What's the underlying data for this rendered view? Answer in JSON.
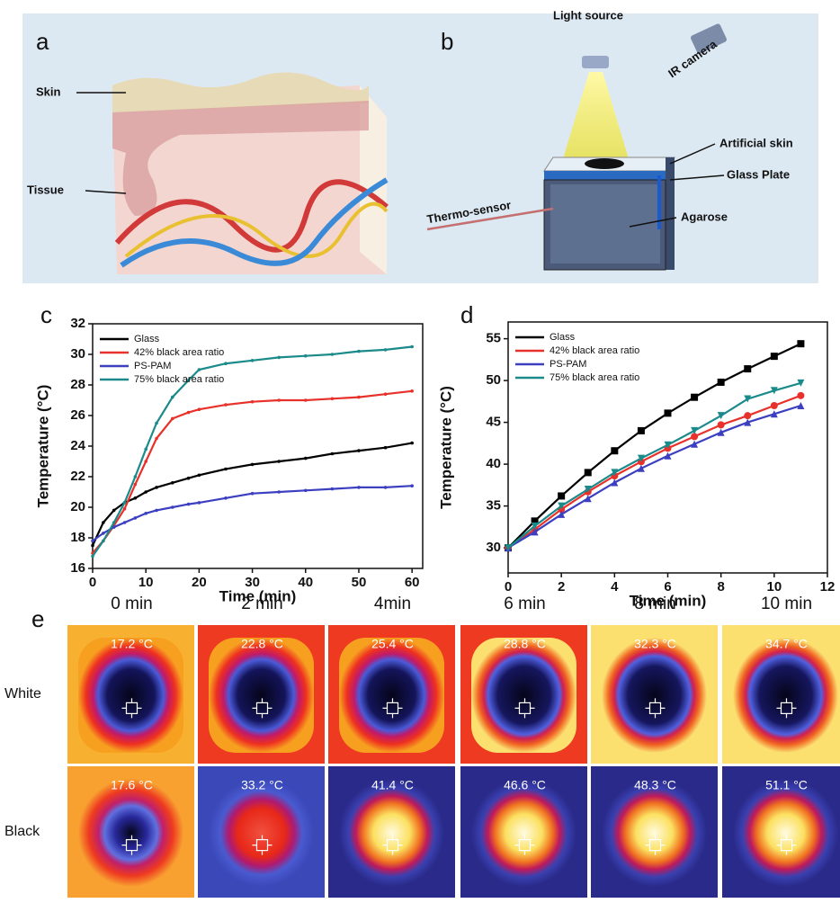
{
  "panel_a": {
    "label": "a",
    "parts": [
      "Skin",
      "Tissue"
    ]
  },
  "panel_b": {
    "label": "b",
    "parts": [
      "Light source",
      "IR camera",
      "Artificial skin",
      "Glass Plate",
      "Agarose",
      "Thermo-sensor"
    ]
  },
  "chart_data": [
    {
      "type": "line",
      "panel_label": "c",
      "x_label": "Time (min)",
      "y_label": "Temperature (°C)",
      "x": [
        0,
        2,
        4,
        6,
        8,
        10,
        12,
        15,
        18,
        20,
        25,
        30,
        35,
        40,
        45,
        50,
        55,
        60
      ],
      "xlim": [
        0,
        62
      ],
      "xticks": [
        0,
        10,
        20,
        30,
        40,
        50,
        60
      ],
      "ylim": [
        16,
        32
      ],
      "yticks": [
        16,
        18,
        20,
        22,
        24,
        26,
        28,
        30,
        32
      ],
      "markers": false,
      "legend": "top-left",
      "series": [
        {
          "name": "Glass",
          "color": "#000000",
          "values": [
            17.5,
            19.0,
            19.8,
            20.3,
            20.6,
            21.0,
            21.3,
            21.6,
            21.9,
            22.1,
            22.5,
            22.8,
            23.0,
            23.2,
            23.5,
            23.7,
            23.9,
            24.2
          ]
        },
        {
          "name": "42% black area ratio",
          "color": "#e8312a",
          "values": [
            17.0,
            17.8,
            18.8,
            19.9,
            21.5,
            23.0,
            24.5,
            25.8,
            26.2,
            26.4,
            26.7,
            26.9,
            27.0,
            27.0,
            27.1,
            27.2,
            27.4,
            27.6
          ]
        },
        {
          "name": "PS-PAM",
          "color": "#3b3fc0",
          "values": [
            17.8,
            18.3,
            18.7,
            19.0,
            19.3,
            19.6,
            19.8,
            20.0,
            20.2,
            20.3,
            20.6,
            20.9,
            21.0,
            21.1,
            21.2,
            21.3,
            21.3,
            21.4
          ]
        },
        {
          "name": "75% black area ratio",
          "color": "#1a8a8a",
          "values": [
            16.8,
            17.8,
            19.0,
            20.3,
            22.0,
            23.8,
            25.5,
            27.2,
            28.3,
            29.0,
            29.4,
            29.6,
            29.8,
            29.9,
            30.0,
            30.2,
            30.3,
            30.5
          ]
        }
      ]
    },
    {
      "type": "line",
      "panel_label": "d",
      "x_label": "Time (min)",
      "y_label": "Temperature (°C)",
      "x": [
        0,
        1,
        2,
        3,
        4,
        5,
        6,
        7,
        8,
        9,
        10,
        11
      ],
      "xlim": [
        0,
        12
      ],
      "xticks": [
        0,
        2,
        4,
        6,
        8,
        10,
        12
      ],
      "ylim": [
        27,
        57
      ],
      "yticks": [
        30,
        35,
        40,
        45,
        50,
        55
      ],
      "markers": true,
      "legend": "top-left",
      "series": [
        {
          "name": "Glass",
          "color": "#000000",
          "values": [
            30,
            33.2,
            36.2,
            39,
            41.6,
            44,
            46.1,
            48,
            49.8,
            51.4,
            52.9,
            54.4
          ]
        },
        {
          "name": "42% black area ratio",
          "color": "#e8312a",
          "values": [
            30,
            32.2,
            34.6,
            36.7,
            38.6,
            40.3,
            41.9,
            43.3,
            44.7,
            45.8,
            47,
            48.2
          ]
        },
        {
          "name": "PS-PAM",
          "color": "#3b3fc0",
          "values": [
            30,
            31.9,
            34,
            35.9,
            37.8,
            39.5,
            41,
            42.4,
            43.8,
            45,
            46,
            47
          ]
        },
        {
          "name": "75% black area ratio",
          "color": "#1a8a8a",
          "values": [
            30,
            32.6,
            35,
            37,
            39,
            40.7,
            42.3,
            44,
            45.8,
            47.8,
            48.8,
            49.7
          ]
        }
      ]
    }
  ],
  "thermal": {
    "label": "e",
    "columns": [
      "0 min",
      "2 min",
      "4min",
      "6 min",
      "8 min",
      "10 min"
    ],
    "rows": [
      {
        "name": "White",
        "readings": [
          "17.2 °C",
          "22.8 °C",
          "25.4 °C",
          "28.8 °C",
          "32.3 °C",
          "34.7 °C"
        ]
      },
      {
        "name": "Black",
        "readings": [
          "17.6 °C",
          "33.2 °C",
          "41.4 °C",
          "46.6 °C",
          "48.3 °C",
          "51.1 °C"
        ]
      }
    ]
  }
}
